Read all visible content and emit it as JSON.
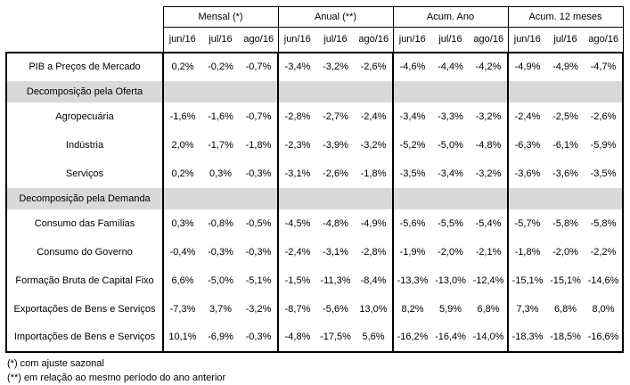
{
  "table": {
    "column_groups": [
      {
        "label": "Mensal (*)"
      },
      {
        "label": "Anual (**)"
      },
      {
        "label": "Acum. Ano"
      },
      {
        "label": "Acum. 12 meses"
      }
    ],
    "months": [
      "jun/16",
      "jul/16",
      "ago/16"
    ],
    "rows": [
      {
        "type": "data",
        "label": "PIB a Preços de Mercado",
        "values": [
          "0,2%",
          "-0,2%",
          "-0,7%",
          "-3,4%",
          "-3,2%",
          "-2,6%",
          "-4,6%",
          "-4,4%",
          "-4,2%",
          "-4,9%",
          "-4,9%",
          "-4,7%"
        ]
      },
      {
        "type": "section",
        "label": "Decomposição pela Oferta"
      },
      {
        "type": "data",
        "label": "Agropecuária",
        "values": [
          "-1,6%",
          "-1,6%",
          "-0,7%",
          "-2,8%",
          "-2,7%",
          "-2,4%",
          "-3,4%",
          "-3,3%",
          "-3,2%",
          "-2,4%",
          "-2,5%",
          "-2,6%"
        ]
      },
      {
        "type": "data",
        "label": "Indústria",
        "values": [
          "2,0%",
          "-1,7%",
          "-1,8%",
          "-2,3%",
          "-3,9%",
          "-3,2%",
          "-5,2%",
          "-5,0%",
          "-4,8%",
          "-6,3%",
          "-6,1%",
          "-5,9%"
        ]
      },
      {
        "type": "data",
        "label": "Serviços",
        "values": [
          "0,2%",
          "0,3%",
          "-0,3%",
          "-3,1%",
          "-2,6%",
          "-1,8%",
          "-3,5%",
          "-3,4%",
          "-3,2%",
          "-3,6%",
          "-3,6%",
          "-3,5%"
        ]
      },
      {
        "type": "section",
        "label": "Decomposição pela Demanda"
      },
      {
        "type": "data",
        "label": "Consumo das Famílias",
        "values": [
          "0,3%",
          "-0,8%",
          "-0,5%",
          "-4,5%",
          "-4,8%",
          "-4,9%",
          "-5,6%",
          "-5,5%",
          "-5,4%",
          "-5,7%",
          "-5,8%",
          "-5,8%"
        ]
      },
      {
        "type": "data",
        "label": "Consumo do Governo",
        "values": [
          "-0,4%",
          "-0,3%",
          "-0,3%",
          "-2,4%",
          "-3,1%",
          "-2,8%",
          "-1,9%",
          "-2,0%",
          "-2,1%",
          "-1,8%",
          "-2,0%",
          "-2,2%"
        ]
      },
      {
        "type": "data",
        "label": "Formação Bruta de Capital Fixo",
        "values": [
          "6,6%",
          "-5,0%",
          "-5,1%",
          "-1,5%",
          "-11,3%",
          "-8,4%",
          "-13,3%",
          "-13,0%",
          "-12,4%",
          "-15,1%",
          "-15,1%",
          "-14,6%"
        ]
      },
      {
        "type": "data",
        "label": "Exportações de Bens e Serviços",
        "values": [
          "-7,3%",
          "3,7%",
          "-3,2%",
          "-8,7%",
          "-5,6%",
          "13,0%",
          "8,2%",
          "5,9%",
          "6,8%",
          "7,3%",
          "6,8%",
          "8,0%"
        ]
      },
      {
        "type": "data",
        "label": "Importações de Bens e Serviços",
        "values": [
          "10,1%",
          "-6,9%",
          "-0,3%",
          "-4,8%",
          "-17,5%",
          "5,6%",
          "-16,2%",
          "-16,4%",
          "-14,0%",
          "-18,3%",
          "-18,5%",
          "-16,6%"
        ]
      }
    ]
  },
  "footnotes": [
    "(*) com ajuste sazonal",
    "(**) em relação ao mesmo período do ano anterior"
  ],
  "colors": {
    "section_row_bg": "#d9d9d9",
    "border": "#000000",
    "text": "#000000"
  }
}
